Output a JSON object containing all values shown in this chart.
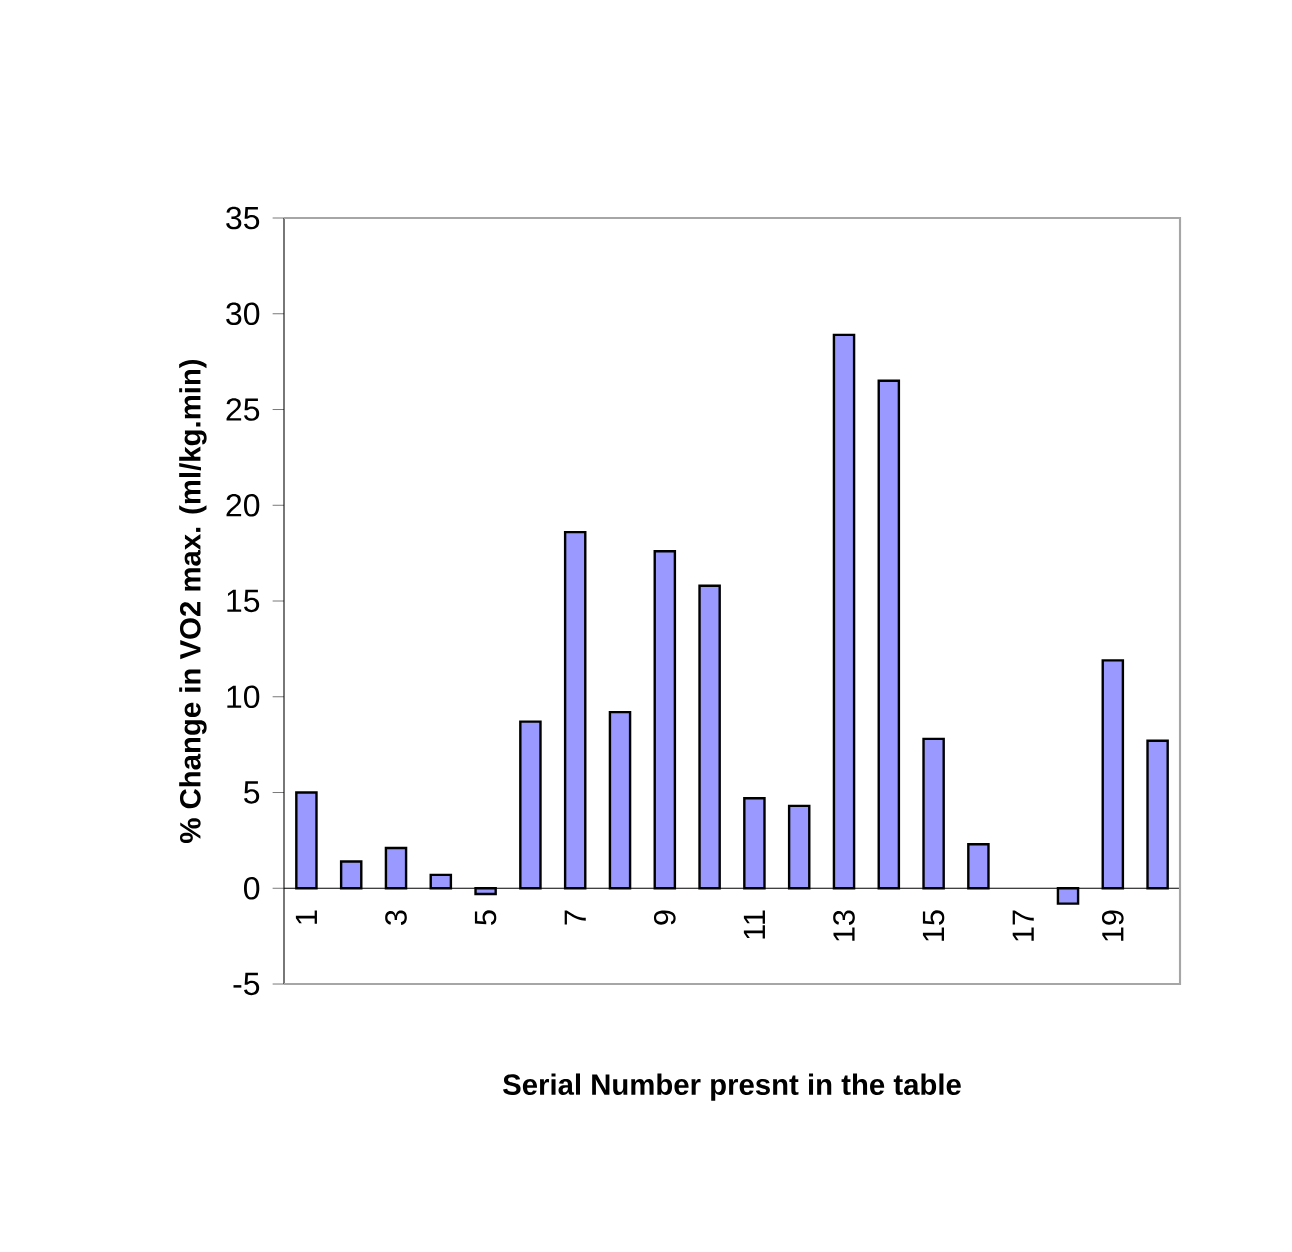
{
  "chart_data": {
    "type": "bar",
    "xlabel": "Serial Number presnt in the table",
    "ylabel": "% Change in VO2 max. (ml/kg.min)",
    "categories": [
      "1",
      null,
      "3",
      null,
      "5",
      null,
      "7",
      null,
      "9",
      null,
      "11",
      null,
      "13",
      null,
      "15",
      null,
      "17",
      null,
      "19",
      null
    ],
    "values": [
      5.0,
      1.4,
      2.1,
      0.7,
      -0.3,
      8.7,
      18.6,
      9.2,
      17.6,
      15.8,
      4.7,
      4.3,
      28.9,
      26.5,
      7.8,
      2.3,
      null,
      -0.8,
      11.9,
      7.7
    ],
    "color": "#9999ff",
    "ylim": [
      -5,
      35
    ],
    "yticks": [
      -5,
      0,
      5,
      10,
      15,
      20,
      25,
      30,
      35
    ]
  }
}
